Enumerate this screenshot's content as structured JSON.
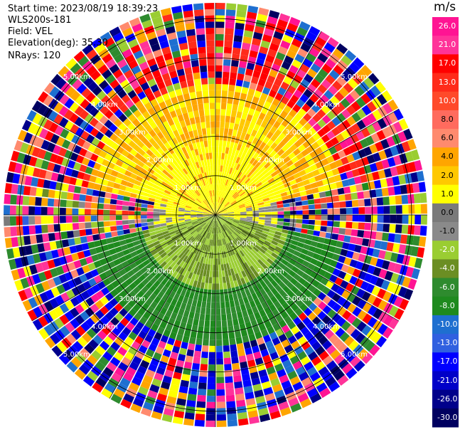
{
  "header": {
    "start_time": "Start time: 2023/08/19 18:39:23",
    "instrument": "WLS200s-181",
    "field": "Field: VEL",
    "elevation": "Elevation(deg): 35.30",
    "nrays": "NRays: 120"
  },
  "colorbar": {
    "unit": "m/s",
    "ticks": [
      "26.0",
      "21.0",
      "17.0",
      "13.0",
      "10.0",
      "8.0",
      "6.0",
      "4.0",
      "2.0",
      "1.0",
      "0.0",
      "-1.0",
      "-2.0",
      "-4.0",
      "-6.0",
      "-8.0",
      "-10.0",
      "-13.0",
      "-17.0",
      "-21.0",
      "-26.0",
      "-30.0"
    ],
    "colors": [
      "#ff1493",
      "#ff3399",
      "#ff0000",
      "#ff2b1a",
      "#ff4a2a",
      "#ff6b5e",
      "#ff8a6e",
      "#ffa500",
      "#ffc800",
      "#ffff00",
      "#7a7a7a",
      "#8a8a8a",
      "#9acd32",
      "#6b8e23",
      "#2e8b2e",
      "#1e8a1e",
      "#1e6fd0",
      "#3060e0",
      "#0000ff",
      "#0000c8",
      "#00008b",
      "#000060"
    ]
  },
  "chart_data": {
    "type": "heatmap",
    "title": "",
    "rings_km": [
      1.0,
      2.0,
      3.0,
      4.0,
      5.0
    ],
    "ring_labels": [
      "1.00km",
      "2.00km",
      "3.00km",
      "4.00km",
      "5.00km"
    ],
    "nrays": 120,
    "sector_pattern": [
      {
        "name": "north",
        "colors_near": "yellow",
        "colors_far": "red/magenta"
      },
      {
        "name": "south",
        "colors_near": "green",
        "colors_far": "blue"
      }
    ]
  }
}
